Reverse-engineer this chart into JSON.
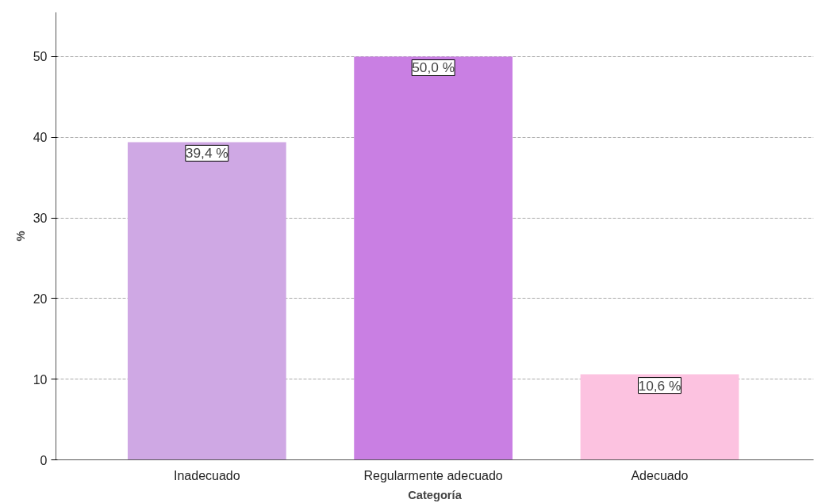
{
  "chart_data": {
    "type": "bar",
    "xlabel": "Categoría",
    "ylabel": "%",
    "categories": [
      "Inadecuado",
      "Regularmente adecuado",
      "Adecuado"
    ],
    "values": [
      39.4,
      50.0,
      10.6
    ],
    "colors": [
      "#cfa8e4",
      "#c97fe3",
      "#fcc2e0"
    ],
    "value_labels": [
      "39,4 %",
      "50,0 %",
      "10,6 %"
    ],
    "ylim": [
      0,
      55.5
    ],
    "yticks": [
      0,
      10,
      20,
      30,
      40,
      50
    ],
    "grid": "y"
  }
}
